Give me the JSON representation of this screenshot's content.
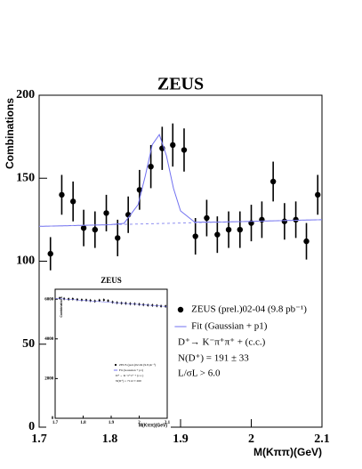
{
  "chart_data": [
    {
      "type": "errorbar",
      "title": "ZEUS",
      "xlabel": "M(Kππ)(GeV)",
      "ylabel": "Combinations",
      "xlim": [
        1.7,
        2.1
      ],
      "xticks": [
        1.7,
        1.8,
        1.9,
        2,
        2.1
      ],
      "ylim": [
        0,
        200
      ],
      "yticks": [
        0,
        50,
        100,
        150,
        200
      ],
      "series": [
        {
          "name": "ZEUS (prel.)02-04 (9.8 pb⁻¹)",
          "mode": "markers",
          "color": "#000000",
          "x": [
            1.716,
            1.732,
            1.748,
            1.763,
            1.779,
            1.795,
            1.811,
            1.826,
            1.842,
            1.858,
            1.874,
            1.889,
            1.905,
            1.921,
            1.937,
            1.952,
            1.968,
            1.984,
            2.0,
            2.015,
            2.031,
            2.047,
            2.063,
            2.078,
            2.094
          ],
          "values": [
            104.5,
            140,
            136,
            120,
            119,
            129,
            114,
            128,
            143,
            157,
            168,
            170,
            167,
            115,
            126,
            116,
            119,
            119,
            123,
            125,
            148,
            124,
            125,
            112,
            140
          ],
          "errors": [
            10,
            12,
            12,
            11,
            11,
            11,
            11,
            11,
            12,
            13,
            13,
            13,
            13,
            11,
            11,
            11,
            11,
            11,
            11,
            11,
            12,
            11,
            11,
            11,
            12
          ]
        },
        {
          "name": "Fit (Gaussian + p1)",
          "mode": "line",
          "color": "#7070f0",
          "x": [
            1.7,
            1.76,
            1.8,
            1.82,
            1.84,
            1.85,
            1.86,
            1.87,
            1.88,
            1.89,
            1.9,
            1.92,
            1.96,
            2.0,
            2.05,
            2.1
          ],
          "values": [
            121,
            121.6,
            122,
            122.8,
            134.1,
            151.2,
            170.2,
            176.3,
            163.6,
            143.9,
            130.3,
            123.5,
            123.6,
            124,
            124.5,
            125
          ]
        },
        {
          "mode": "line",
          "dash": true,
          "color": "#9090f0",
          "x": [
            1.7,
            2.1
          ],
          "values": [
            121,
            125
          ]
        }
      ],
      "annotations": [
        "D⁺→ K⁻π⁺π⁺ + (c.c.)",
        "N(D⁺) = 191 ± 33",
        "L/σL > 6.0"
      ]
    },
    {
      "type": "errorbar",
      "title": "ZEUS",
      "xlabel": "M(Kππ)(GeV)",
      "ylabel": "Combinations",
      "xlim": [
        1.7,
        2.1
      ],
      "xticks": [
        1.7,
        1.8,
        1.9,
        2,
        2.1
      ],
      "ylim": [
        0,
        6500
      ],
      "yticks": [
        0,
        2000,
        4000,
        6000
      ],
      "series": [
        {
          "name": "ZEUS (prel.)02-04 (9.8 pb⁻¹)",
          "mode": "markers",
          "color": "#000000",
          "x": [
            1.716,
            1.732,
            1.748,
            1.763,
            1.779,
            1.795,
            1.811,
            1.826,
            1.842,
            1.858,
            1.874,
            1.889,
            1.905,
            1.921,
            1.937,
            1.952,
            1.968,
            1.984,
            2.0,
            2.015,
            2.031,
            2.047,
            2.063,
            2.078,
            2.094
          ],
          "values": [
            6050,
            6020,
            6000,
            6010,
            5980,
            5960,
            5950,
            5930,
            5900,
            5940,
            5960,
            5920,
            5850,
            5820,
            5800,
            5790,
            5770,
            5760,
            5740,
            5720,
            5700,
            5690,
            5670,
            5650,
            5640
          ],
          "errors": [
            80,
            80,
            80,
            80,
            80,
            80,
            80,
            80,
            80,
            80,
            80,
            80,
            80,
            80,
            80,
            80,
            80,
            80,
            80,
            80,
            80,
            80,
            80,
            80,
            80
          ]
        },
        {
          "name": "Fit (Gaussian + p1)",
          "mode": "line",
          "color": "#7070f0",
          "x": [
            1.7,
            2.1
          ],
          "values": [
            6040,
            5630
          ]
        }
      ],
      "annotations": [
        "D⁺→ K⁻π⁺π⁺ + (c.c.)",
        "N(D⁺) = 7112 ± 260"
      ]
    }
  ]
}
